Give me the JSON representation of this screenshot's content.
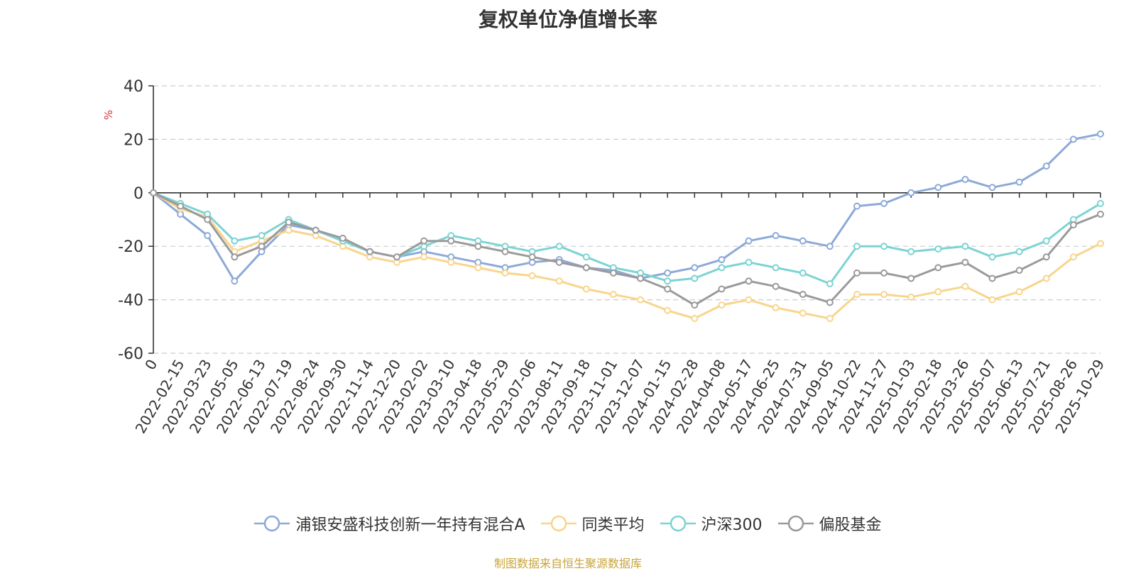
{
  "title": "复权单位净值增长率",
  "source_note": "制图数据来自恒生聚源数据库",
  "colors": {
    "source_note": "#c8a43a",
    "ylabel": "#e03030",
    "axis": "#333333",
    "grid": "#cccccc"
  },
  "chart_data": {
    "type": "line",
    "title": "复权单位净值增长率",
    "xlabel": "",
    "ylabel": "%",
    "ylim": [
      -60,
      40
    ],
    "yticks": [
      40,
      20,
      0,
      -20,
      -40,
      -60
    ],
    "grid": true,
    "legend_position": "bottom",
    "x_ticks": [
      "0",
      "2022-02-15",
      "2022-03-23",
      "2022-05-05",
      "2022-06-13",
      "2022-07-19",
      "2022-08-24",
      "2022-09-30",
      "2022-11-14",
      "2022-12-20",
      "2023-02-02",
      "2023-03-10",
      "2023-04-18",
      "2023-05-29",
      "2023-07-06",
      "2023-08-11",
      "2023-09-18",
      "2023-11-01",
      "2023-12-07",
      "2024-01-15",
      "2024-02-28",
      "2024-04-08",
      "2024-05-17",
      "2024-06-25",
      "2024-07-31",
      "2024-09-05",
      "2024-10-22",
      "2024-11-27",
      "2025-01-03",
      "2025-02-18",
      "2025-03-26",
      "2025-05-07",
      "2025-06-13",
      "2025-07-21",
      "2025-08-26",
      "2025-10-29"
    ],
    "series": [
      {
        "name": "浦银安盛科技创新一年持有混合A",
        "color": "#8da9d8",
        "values": [
          0,
          -8,
          -16,
          -33,
          -22,
          -12,
          -14,
          -18,
          -22,
          -24,
          -22,
          -24,
          -26,
          -28,
          -26,
          -25,
          -28,
          -29,
          -32,
          -30,
          -28,
          -25,
          -18,
          -16,
          -18,
          -20,
          -5,
          -4,
          0,
          2,
          5,
          2,
          4,
          10,
          20,
          22
        ]
      },
      {
        "name": "同类平均",
        "color": "#f8d58c",
        "values": [
          0,
          -6,
          -9,
          -22,
          -18,
          -14,
          -16,
          -20,
          -24,
          -26,
          -24,
          -26,
          -28,
          -30,
          -31,
          -33,
          -36,
          -38,
          -40,
          -44,
          -47,
          -42,
          -40,
          -43,
          -45,
          -47,
          -38,
          -38,
          -39,
          -37,
          -35,
          -40,
          -37,
          -32,
          -24,
          -19
        ]
      },
      {
        "name": "沪深300",
        "color": "#7dd3d3",
        "values": [
          0,
          -4,
          -8,
          -18,
          -16,
          -10,
          -14,
          -18,
          -22,
          -24,
          -20,
          -16,
          -18,
          -20,
          -22,
          -20,
          -24,
          -28,
          -30,
          -33,
          -32,
          -28,
          -26,
          -28,
          -30,
          -34,
          -20,
          -20,
          -22,
          -21,
          -20,
          -24,
          -22,
          -18,
          -10,
          -4
        ]
      },
      {
        "name": "偏股基金",
        "color": "#9a9a9a",
        "values": [
          0,
          -5,
          -10,
          -24,
          -20,
          -11,
          -14,
          -17,
          -22,
          -24,
          -18,
          -18,
          -20,
          -22,
          -24,
          -26,
          -28,
          -30,
          -32,
          -36,
          -42,
          -36,
          -33,
          -35,
          -38,
          -41,
          -30,
          -30,
          -32,
          -28,
          -26,
          -32,
          -29,
          -24,
          -12,
          -8
        ]
      }
    ]
  }
}
